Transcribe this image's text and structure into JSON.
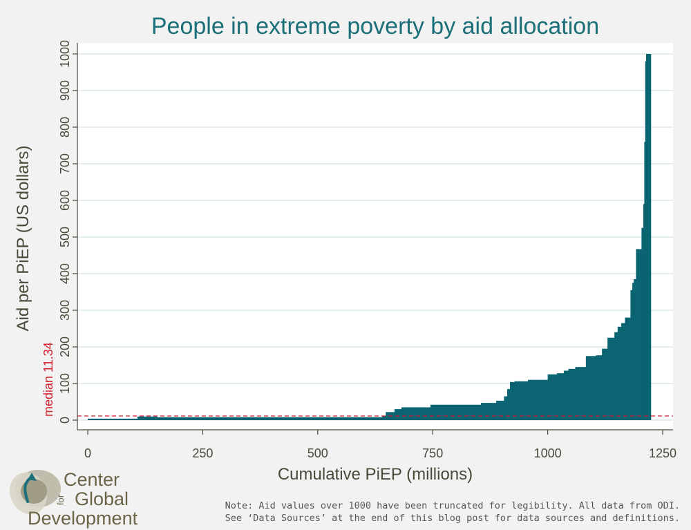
{
  "colors": {
    "bar": "#0b6471",
    "title": "#1b6f78",
    "median_line": "#d21f2b",
    "grid": "#e4eeee",
    "axis": "#4a4a3a",
    "plot_background": "#ffffff",
    "page_background": "#f1f2f1"
  },
  "logo": {
    "line1": "Center",
    "for": "for",
    "line2": "Global",
    "line3": "Development"
  },
  "note": {
    "line1": "Note: Aid values over 1000 have been truncated for legibility. All data from ODI.",
    "line2": "See ‘Data Sources’ at the end of this blog post for data sources and definitions."
  },
  "chart_data": {
    "type": "area",
    "title": "People in extreme poverty by aid allocation",
    "xlabel": "Cumulative PiEP (millions)",
    "ylabel": "Aid per PiEP (US dollars)",
    "xlim": [
      0,
      1250
    ],
    "ylim": [
      0,
      1000
    ],
    "x_ticks": [
      0,
      250,
      500,
      750,
      1000,
      1250
    ],
    "y_ticks": [
      0,
      100,
      200,
      300,
      400,
      500,
      600,
      700,
      800,
      900,
      1000
    ],
    "grid": true,
    "median": {
      "value": 11.34,
      "label": "median 11.34"
    },
    "steps": [
      {
        "x0": 0,
        "x1": 108,
        "y": 4
      },
      {
        "x0": 108,
        "x1": 150,
        "y": 10
      },
      {
        "x0": 150,
        "x1": 640,
        "y": 8
      },
      {
        "x0": 640,
        "x1": 648,
        "y": 12
      },
      {
        "x0": 648,
        "x1": 667,
        "y": 22
      },
      {
        "x0": 667,
        "x1": 682,
        "y": 30
      },
      {
        "x0": 682,
        "x1": 745,
        "y": 35
      },
      {
        "x0": 745,
        "x1": 855,
        "y": 42
      },
      {
        "x0": 855,
        "x1": 888,
        "y": 47
      },
      {
        "x0": 888,
        "x1": 905,
        "y": 53
      },
      {
        "x0": 905,
        "x1": 912,
        "y": 65
      },
      {
        "x0": 912,
        "x1": 918,
        "y": 85
      },
      {
        "x0": 918,
        "x1": 928,
        "y": 104
      },
      {
        "x0": 928,
        "x1": 957,
        "y": 106
      },
      {
        "x0": 957,
        "x1": 1000,
        "y": 110
      },
      {
        "x0": 1000,
        "x1": 1020,
        "y": 125
      },
      {
        "x0": 1020,
        "x1": 1035,
        "y": 128
      },
      {
        "x0": 1035,
        "x1": 1045,
        "y": 135
      },
      {
        "x0": 1045,
        "x1": 1060,
        "y": 140
      },
      {
        "x0": 1060,
        "x1": 1083,
        "y": 145
      },
      {
        "x0": 1083,
        "x1": 1105,
        "y": 175
      },
      {
        "x0": 1105,
        "x1": 1118,
        "y": 177
      },
      {
        "x0": 1118,
        "x1": 1130,
        "y": 195
      },
      {
        "x0": 1130,
        "x1": 1145,
        "y": 225
      },
      {
        "x0": 1145,
        "x1": 1152,
        "y": 240
      },
      {
        "x0": 1152,
        "x1": 1160,
        "y": 255
      },
      {
        "x0": 1160,
        "x1": 1168,
        "y": 265
      },
      {
        "x0": 1168,
        "x1": 1180,
        "y": 280
      },
      {
        "x0": 1180,
        "x1": 1184,
        "y": 355
      },
      {
        "x0": 1184,
        "x1": 1187,
        "y": 375
      },
      {
        "x0": 1187,
        "x1": 1192,
        "y": 385
      },
      {
        "x0": 1192,
        "x1": 1204,
        "y": 467
      },
      {
        "x0": 1204,
        "x1": 1208,
        "y": 525
      },
      {
        "x0": 1208,
        "x1": 1210,
        "y": 590
      },
      {
        "x0": 1210,
        "x1": 1212,
        "y": 760
      },
      {
        "x0": 1212,
        "x1": 1214,
        "y": 980
      },
      {
        "x0": 1214,
        "x1": 1224,
        "y": 1000
      }
    ]
  }
}
